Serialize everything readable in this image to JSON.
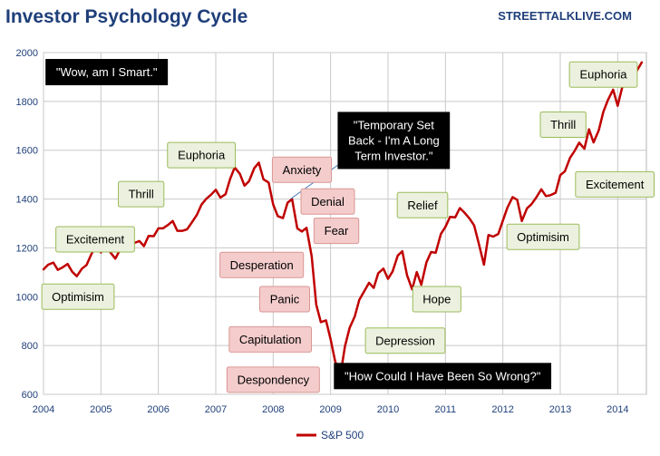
{
  "chart_data": {
    "type": "line",
    "title": "Investor Psychology Cycle",
    "source": "STREETTALKLIVE.COM",
    "xlim": [
      2004,
      2014.5
    ],
    "ylim": [
      600,
      2000
    ],
    "x_ticks": [
      2004,
      2005,
      2006,
      2007,
      2008,
      2009,
      2010,
      2011,
      2012,
      2013,
      2014
    ],
    "y_ticks": [
      600,
      800,
      1000,
      1200,
      1400,
      1600,
      1800,
      2000
    ],
    "grid": true,
    "legend_position": "bottom-center",
    "series": [
      {
        "name": "S&P 500",
        "color": "#c00000",
        "points": [
          [
            2004.0,
            1112
          ],
          [
            2004.08,
            1131
          ],
          [
            2004.17,
            1140
          ],
          [
            2004.25,
            1110
          ],
          [
            2004.33,
            1120
          ],
          [
            2004.42,
            1134
          ],
          [
            2004.5,
            1102
          ],
          [
            2004.58,
            1084
          ],
          [
            2004.67,
            1115
          ],
          [
            2004.75,
            1130
          ],
          [
            2004.83,
            1173
          ],
          [
            2004.92,
            1211
          ],
          [
            2005.0,
            1181
          ],
          [
            2005.08,
            1203
          ],
          [
            2005.17,
            1180
          ],
          [
            2005.25,
            1156
          ],
          [
            2005.33,
            1191
          ],
          [
            2005.42,
            1191
          ],
          [
            2005.5,
            1234
          ],
          [
            2005.58,
            1220
          ],
          [
            2005.67,
            1228
          ],
          [
            2005.75,
            1207
          ],
          [
            2005.83,
            1249
          ],
          [
            2005.92,
            1248
          ],
          [
            2006.0,
            1280
          ],
          [
            2006.08,
            1280
          ],
          [
            2006.17,
            1294
          ],
          [
            2006.25,
            1310
          ],
          [
            2006.33,
            1270
          ],
          [
            2006.42,
            1270
          ],
          [
            2006.5,
            1276
          ],
          [
            2006.58,
            1303
          ],
          [
            2006.67,
            1335
          ],
          [
            2006.75,
            1377
          ],
          [
            2006.83,
            1400
          ],
          [
            2006.92,
            1418
          ],
          [
            2007.0,
            1438
          ],
          [
            2007.08,
            1406
          ],
          [
            2007.17,
            1420
          ],
          [
            2007.25,
            1482
          ],
          [
            2007.33,
            1530
          ],
          [
            2007.42,
            1503
          ],
          [
            2007.5,
            1455
          ],
          [
            2007.58,
            1473
          ],
          [
            2007.67,
            1526
          ],
          [
            2007.75,
            1549
          ],
          [
            2007.83,
            1481
          ],
          [
            2007.92,
            1468
          ],
          [
            2008.0,
            1378
          ],
          [
            2008.08,
            1330
          ],
          [
            2008.17,
            1322
          ],
          [
            2008.25,
            1385
          ],
          [
            2008.33,
            1400
          ],
          [
            2008.42,
            1280
          ],
          [
            2008.5,
            1267
          ],
          [
            2008.58,
            1282
          ],
          [
            2008.67,
            1166
          ],
          [
            2008.75,
            968
          ],
          [
            2008.83,
            896
          ],
          [
            2008.92,
            903
          ],
          [
            2009.0,
            825
          ],
          [
            2009.08,
            735
          ],
          [
            2009.17,
            676
          ],
          [
            2009.25,
            797
          ],
          [
            2009.33,
            872
          ],
          [
            2009.42,
            919
          ],
          [
            2009.5,
            987
          ],
          [
            2009.58,
            1020
          ],
          [
            2009.67,
            1057
          ],
          [
            2009.75,
            1036
          ],
          [
            2009.83,
            1096
          ],
          [
            2009.92,
            1115
          ],
          [
            2010.0,
            1073
          ],
          [
            2010.08,
            1104
          ],
          [
            2010.17,
            1169
          ],
          [
            2010.25,
            1186
          ],
          [
            2010.33,
            1089
          ],
          [
            2010.42,
            1030
          ],
          [
            2010.5,
            1101
          ],
          [
            2010.58,
            1049
          ],
          [
            2010.67,
            1141
          ],
          [
            2010.75,
            1183
          ],
          [
            2010.83,
            1180
          ],
          [
            2010.92,
            1257
          ],
          [
            2011.0,
            1286
          ],
          [
            2011.08,
            1327
          ],
          [
            2011.17,
            1325
          ],
          [
            2011.25,
            1363
          ],
          [
            2011.33,
            1345
          ],
          [
            2011.42,
            1320
          ],
          [
            2011.5,
            1292
          ],
          [
            2011.58,
            1218
          ],
          [
            2011.67,
            1131
          ],
          [
            2011.75,
            1253
          ],
          [
            2011.83,
            1246
          ],
          [
            2011.92,
            1257
          ],
          [
            2012.0,
            1312
          ],
          [
            2012.08,
            1365
          ],
          [
            2012.17,
            1408
          ],
          [
            2012.25,
            1397
          ],
          [
            2012.33,
            1310
          ],
          [
            2012.42,
            1362
          ],
          [
            2012.5,
            1379
          ],
          [
            2012.58,
            1406
          ],
          [
            2012.67,
            1440
          ],
          [
            2012.75,
            1412
          ],
          [
            2012.83,
            1416
          ],
          [
            2012.92,
            1426
          ],
          [
            2013.0,
            1498
          ],
          [
            2013.08,
            1514
          ],
          [
            2013.17,
            1569
          ],
          [
            2013.25,
            1597
          ],
          [
            2013.33,
            1631
          ],
          [
            2013.42,
            1606
          ],
          [
            2013.5,
            1686
          ],
          [
            2013.58,
            1632
          ],
          [
            2013.67,
            1681
          ],
          [
            2013.75,
            1757
          ],
          [
            2013.83,
            1806
          ],
          [
            2013.92,
            1848
          ],
          [
            2014.0,
            1782
          ],
          [
            2014.08,
            1859
          ],
          [
            2014.17,
            1872
          ],
          [
            2014.25,
            1884
          ],
          [
            2014.33,
            1924
          ],
          [
            2014.42,
            1960
          ]
        ]
      }
    ],
    "annotations": [
      {
        "label": "Optimisim",
        "x": 2004.6,
        "y": 1000,
        "style": "green"
      },
      {
        "label": "Excitement",
        "x": 2004.9,
        "y": 1235,
        "style": "green"
      },
      {
        "label": "Thrill",
        "x": 2005.7,
        "y": 1420,
        "style": "green"
      },
      {
        "label": "Euphoria",
        "x": 2006.75,
        "y": 1580,
        "style": "green"
      },
      {
        "label": "Anxiety",
        "x": 2008.5,
        "y": 1520,
        "style": "red"
      },
      {
        "label": "Denial",
        "x": 2008.95,
        "y": 1390,
        "style": "red"
      },
      {
        "label": "Fear",
        "x": 2009.1,
        "y": 1270,
        "style": "red"
      },
      {
        "label": "Desperation",
        "x": 2007.8,
        "y": 1130,
        "style": "red"
      },
      {
        "label": "Panic",
        "x": 2008.2,
        "y": 990,
        "style": "red"
      },
      {
        "label": "Capitulation",
        "x": 2007.95,
        "y": 825,
        "style": "red"
      },
      {
        "label": "Despondency",
        "x": 2008.0,
        "y": 660,
        "style": "red"
      },
      {
        "label": "Depression",
        "x": 2010.3,
        "y": 820,
        "style": "green"
      },
      {
        "label": "Hope",
        "x": 2010.85,
        "y": 990,
        "style": "green"
      },
      {
        "label": "Relief",
        "x": 2010.6,
        "y": 1375,
        "style": "green"
      },
      {
        "label": "Optimisim",
        "x": 2012.7,
        "y": 1245,
        "style": "green"
      },
      {
        "label": "Excitement",
        "x": 2013.95,
        "y": 1460,
        "style": "green"
      },
      {
        "label": "Thrill",
        "x": 2013.05,
        "y": 1705,
        "style": "green"
      },
      {
        "label": "Euphoria",
        "x": 2013.75,
        "y": 1910,
        "style": "green"
      },
      {
        "label": "\"Wow, am I Smart.\"",
        "x": 2005.1,
        "y": 1920,
        "style": "black"
      },
      {
        "label": "\"Temporary Set Back - I'm A Long Term Investor.\"",
        "x": 2010.1,
        "y": 1640,
        "style": "black"
      },
      {
        "label": "\"How Could I Have Been So Wrong?\"",
        "x": 2010.95,
        "y": 675,
        "style": "black"
      }
    ],
    "callout_target": [
      2008.3,
      1400
    ]
  }
}
